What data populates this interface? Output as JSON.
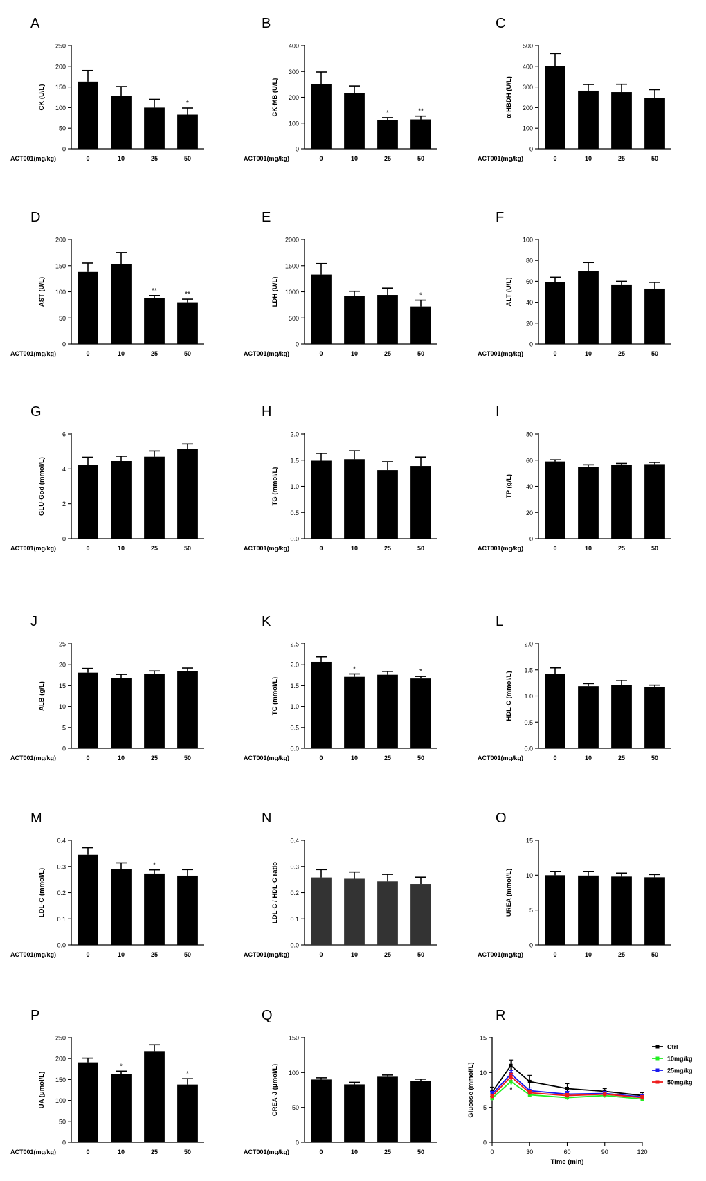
{
  "figure": {
    "background": "#ffffff",
    "bar_color": "#000000"
  },
  "chart_data": [
    {
      "panel": "A",
      "type": "bar",
      "ylabel": "CK (U/L)",
      "xlabel": "ACT001(mg/kg)",
      "categories": [
        "0",
        "10",
        "25",
        "50"
      ],
      "values": [
        163,
        129,
        100,
        83
      ],
      "errors": [
        27,
        22,
        20,
        16
      ],
      "sig": [
        "",
        "",
        "",
        "*"
      ],
      "ylim": [
        0,
        250
      ],
      "yticks": [
        "0",
        "50",
        "100",
        "150",
        "200",
        "250"
      ]
    },
    {
      "panel": "B",
      "type": "bar",
      "ylabel": "CK-MB (U/L)",
      "xlabel": "ACT001(mg/kg)",
      "categories": [
        "0",
        "10",
        "25",
        "50"
      ],
      "values": [
        250,
        217,
        111,
        114
      ],
      "errors": [
        48,
        27,
        10,
        13
      ],
      "sig": [
        "",
        "",
        "*",
        "**"
      ],
      "ylim": [
        0,
        400
      ],
      "yticks": [
        "0",
        "100",
        "200",
        "300",
        "400"
      ]
    },
    {
      "panel": "C",
      "type": "bar",
      "ylabel": "α-HBDH (U/L)",
      "xlabel": "ACT001(mg/kg)",
      "categories": [
        "0",
        "10",
        "25",
        "50"
      ],
      "values": [
        400,
        282,
        275,
        245
      ],
      "errors": [
        62,
        30,
        38,
        42
      ],
      "sig": [
        "",
        "",
        "",
        ""
      ],
      "ylim": [
        0,
        500
      ],
      "yticks": [
        "0",
        "100",
        "200",
        "300",
        "400",
        "500"
      ]
    },
    {
      "panel": "D",
      "type": "bar",
      "ylabel": "AST (U/L)",
      "xlabel": "ACT001(mg/kg)",
      "categories": [
        "0",
        "10",
        "25",
        "50"
      ],
      "values": [
        138,
        153,
        88,
        80
      ],
      "errors": [
        17,
        22,
        5,
        6
      ],
      "sig": [
        "",
        "",
        "**",
        "**"
      ],
      "ylim": [
        0,
        200
      ],
      "yticks": [
        "0",
        "50",
        "100",
        "150",
        "200"
      ]
    },
    {
      "panel": "E",
      "type": "bar",
      "ylabel": "LDH (U/L)",
      "xlabel": "ACT001(mg/kg)",
      "categories": [
        "0",
        "10",
        "25",
        "50"
      ],
      "values": [
        1330,
        920,
        940,
        720
      ],
      "errors": [
        210,
        90,
        130,
        120
      ],
      "sig": [
        "",
        "",
        "",
        "*"
      ],
      "ylim": [
        0,
        2000
      ],
      "yticks": [
        "0",
        "500",
        "1000",
        "1500",
        "2000"
      ]
    },
    {
      "panel": "F",
      "type": "bar",
      "ylabel": "ALT (U/L)",
      "xlabel": "ACT001(mg/kg)",
      "categories": [
        "0",
        "10",
        "25",
        "50"
      ],
      "values": [
        59,
        70,
        57,
        53
      ],
      "errors": [
        5,
        8,
        3,
        6
      ],
      "sig": [
        "",
        "",
        "",
        ""
      ],
      "ylim": [
        0,
        100
      ],
      "yticks": [
        "0",
        "20",
        "40",
        "60",
        "80",
        "100"
      ]
    },
    {
      "panel": "G",
      "type": "bar",
      "ylabel": "GLU-God (mmol/L)",
      "xlabel": "ACT001(mg/kg)",
      "categories": [
        "0",
        "10",
        "25",
        "50"
      ],
      "values": [
        4.25,
        4.45,
        4.7,
        5.15
      ],
      "errors": [
        0.42,
        0.28,
        0.33,
        0.28
      ],
      "sig": [
        "",
        "",
        "",
        ""
      ],
      "ylim": [
        0,
        6
      ],
      "yticks": [
        "0",
        "2",
        "4",
        "6"
      ]
    },
    {
      "panel": "H",
      "type": "bar",
      "ylabel": "TG (mmol/L)",
      "xlabel": "ACT001(mg/kg)",
      "categories": [
        "0",
        "10",
        "25",
        "50"
      ],
      "values": [
        1.49,
        1.52,
        1.31,
        1.39
      ],
      "errors": [
        0.14,
        0.16,
        0.16,
        0.17
      ],
      "sig": [
        "",
        "",
        "",
        ""
      ],
      "ylim": [
        0,
        2.0
      ],
      "yticks": [
        "0.0",
        "0.5",
        "1.0",
        "1.5",
        "2.0"
      ]
    },
    {
      "panel": "I",
      "type": "bar",
      "ylabel": "TP (g/L)",
      "xlabel": "ACT001(mg/kg)",
      "categories": [
        "0",
        "10",
        "25",
        "50"
      ],
      "values": [
        59,
        55,
        56.5,
        57
      ],
      "errors": [
        1.3,
        1.5,
        1.0,
        1.3
      ],
      "sig": [
        "",
        "",
        "",
        ""
      ],
      "ylim": [
        0,
        80
      ],
      "yticks": [
        "0",
        "20",
        "40",
        "60",
        "80"
      ]
    },
    {
      "panel": "J",
      "type": "bar",
      "ylabel": "ALB (g/L)",
      "xlabel": "ACT001(mg/kg)",
      "categories": [
        "0",
        "10",
        "25",
        "50"
      ],
      "values": [
        18.1,
        16.8,
        17.8,
        18.5
      ],
      "errors": [
        1.0,
        0.9,
        0.7,
        0.7
      ],
      "sig": [
        "",
        "",
        "",
        ""
      ],
      "ylim": [
        0,
        25
      ],
      "yticks": [
        "0",
        "5",
        "10",
        "15",
        "20",
        "25"
      ]
    },
    {
      "panel": "K",
      "type": "bar",
      "ylabel": "TC (mmol/L)",
      "xlabel": "ACT001(mg/kg)",
      "categories": [
        "0",
        "10",
        "25",
        "50"
      ],
      "values": [
        2.07,
        1.71,
        1.76,
        1.67
      ],
      "errors": [
        0.12,
        0.07,
        0.08,
        0.05
      ],
      "sig": [
        "",
        "*",
        "",
        "*"
      ],
      "ylim": [
        0,
        2.5
      ],
      "yticks": [
        "0.0",
        "0.5",
        "1.0",
        "1.5",
        "2.0",
        "2.5"
      ]
    },
    {
      "panel": "L",
      "type": "bar",
      "ylabel": "HDL-C (mmol/L)",
      "xlabel": "ACT001(mg/kg)",
      "categories": [
        "0",
        "10",
        "25",
        "50"
      ],
      "values": [
        1.42,
        1.19,
        1.21,
        1.17
      ],
      "errors": [
        0.12,
        0.05,
        0.09,
        0.04
      ],
      "sig": [
        "",
        "",
        "",
        ""
      ],
      "ylim": [
        0,
        2.0
      ],
      "yticks": [
        "0.0",
        "0.5",
        "1.0",
        "1.5",
        "2.0"
      ]
    },
    {
      "panel": "M",
      "type": "bar",
      "ylabel": "LDL-C (mmol/L)",
      "xlabel": "ACT001(mg/kg)",
      "categories": [
        "0",
        "10",
        "25",
        "50"
      ],
      "values": [
        0.345,
        0.29,
        0.273,
        0.265
      ],
      "errors": [
        0.027,
        0.024,
        0.014,
        0.023
      ],
      "sig": [
        "",
        "",
        "*",
        ""
      ],
      "ylim": [
        0,
        0.4
      ],
      "yticks": [
        "0.0",
        "0.1",
        "0.2",
        "0.3",
        "0.4"
      ]
    },
    {
      "panel": "N",
      "type": "bar",
      "ylabel": "LDL-C / HDL-C ratio",
      "xlabel": "ACT001(mg/kg)",
      "categories": [
        "0",
        "10",
        "25",
        "50"
      ],
      "values": [
        0.258,
        0.253,
        0.243,
        0.233
      ],
      "errors": [
        0.03,
        0.026,
        0.027,
        0.026
      ],
      "sig": [
        "",
        "",
        "",
        ""
      ],
      "ylim": [
        0,
        0.4
      ],
      "yticks": [
        "0.0",
        "0.1",
        "0.2",
        "0.3",
        "0.4"
      ],
      "bar_color": "#333333"
    },
    {
      "panel": "O",
      "type": "bar",
      "ylabel": "UREA (mmol/L)",
      "xlabel": "ACT001(mg/kg)",
      "categories": [
        "0",
        "10",
        "25",
        "50"
      ],
      "values": [
        10,
        9.95,
        9.8,
        9.7
      ],
      "errors": [
        0.55,
        0.6,
        0.5,
        0.4
      ],
      "sig": [
        "",
        "",
        "",
        ""
      ],
      "ylim": [
        0,
        15
      ],
      "yticks": [
        "0",
        "5",
        "10",
        "15"
      ]
    },
    {
      "panel": "P",
      "type": "bar",
      "ylabel": "UA (μmol/L)",
      "xlabel": "ACT001(mg/kg)",
      "categories": [
        "0",
        "10",
        "25",
        "50"
      ],
      "values": [
        191,
        163,
        218,
        138
      ],
      "errors": [
        10,
        7,
        15,
        14
      ],
      "sig": [
        "",
        "*",
        "",
        "*"
      ],
      "ylim": [
        0,
        250
      ],
      "yticks": [
        "0",
        "50",
        "100",
        "150",
        "200",
        "250"
      ]
    },
    {
      "panel": "Q",
      "type": "bar",
      "ylabel": "CREA-J (μmol/L)",
      "xlabel": "ACT001(mg/kg)",
      "categories": [
        "0",
        "10",
        "25",
        "50"
      ],
      "values": [
        90,
        83,
        94,
        88
      ],
      "errors": [
        2.5,
        3,
        2.5,
        2.5
      ],
      "sig": [
        "",
        "",
        "",
        ""
      ],
      "ylim": [
        0,
        150
      ],
      "yticks": [
        "0",
        "50",
        "100",
        "150"
      ]
    },
    {
      "panel": "R",
      "type": "line",
      "ylabel": "Glucose (mmol/L)",
      "xlabel": "Time (min)",
      "x": [
        0,
        15,
        30,
        60,
        90,
        120
      ],
      "ylim": [
        0,
        15
      ],
      "yticks": [
        "0",
        "5",
        "10",
        "15"
      ],
      "xlim": [
        0,
        120
      ],
      "xticks": [
        "0",
        "30",
        "60",
        "90",
        "120"
      ],
      "legend": "right",
      "sig_marks": [
        {
          "x": 15,
          "text": "*"
        }
      ],
      "series": [
        {
          "name": "Ctrl",
          "color": "#000000",
          "values": [
            7.2,
            11.0,
            8.7,
            7.7,
            7.3,
            6.7
          ],
          "errors": [
            0.7,
            0.8,
            0.9,
            0.7,
            0.4,
            0.4
          ]
        },
        {
          "name": "10mg/kg",
          "color": "#22ee22",
          "values": [
            6.3,
            8.7,
            6.8,
            6.4,
            6.7,
            6.2
          ],
          "errors": [
            0.3,
            0.4,
            0.3,
            0.3,
            0.3,
            0.3
          ]
        },
        {
          "name": "25mg/kg",
          "color": "#1a1aee",
          "values": [
            6.9,
            9.8,
            7.4,
            6.9,
            7.0,
            6.5
          ],
          "errors": [
            0.4,
            0.5,
            0.4,
            0.4,
            0.3,
            0.3
          ]
        },
        {
          "name": "50mg/kg",
          "color": "#ee1a1a",
          "values": [
            6.6,
            9.4,
            7.1,
            6.7,
            6.9,
            6.4
          ],
          "errors": [
            0.3,
            0.5,
            0.3,
            0.3,
            0.3,
            0.3
          ]
        }
      ]
    }
  ]
}
